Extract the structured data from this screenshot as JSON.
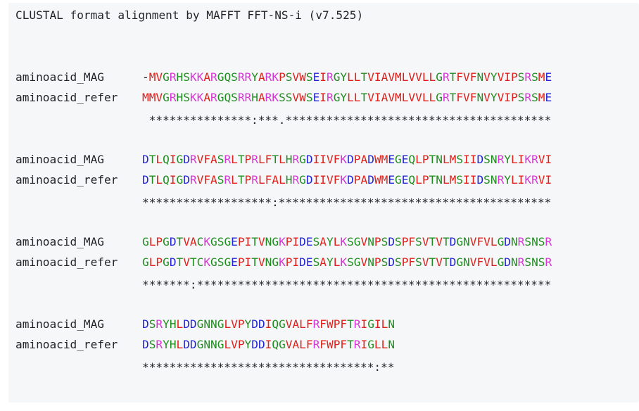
{
  "header": "CLUSTAL format alignment by MAFFT FFT-NS-i (v7.525)",
  "colors": {
    "hydrophobic": "#e0201b",
    "polar": "#218d21",
    "basic": "#d636d6",
    "acidic": "#2323d6",
    "other": "#1f2328"
  },
  "blocks": [
    {
      "rows": [
        {
          "name": "aminoacid_MAG",
          "seq": "-MVGRHSKKARGQSRRYARKPSVWSEIRGYLLTVIAVMLVVLLGRTFVFNVYVIPSRSME"
        },
        {
          "name": "aminoacid_refer",
          "seq": "MMVGRHSKKARGQSRRHARKSSVWSEIRGYLLTVIAVMLVVLLGRTFVFNVYVIPSRSME"
        }
      ],
      "consensus": " ***************:***.***************************************"
    },
    {
      "rows": [
        {
          "name": "aminoacid_MAG",
          "seq": "DTLQIGDRVFASRLTPRLFTLHRGDIIVFKDPADWMEGEQLPTNLMSIIDSNRYLIKRVI"
        },
        {
          "name": "aminoacid_refer",
          "seq": "DTLQIGDRVFASRLTPRLFALHRGDIIVFKDPADWMEGEQLPTNLMSIIDSNRYLIKRVI"
        }
      ],
      "consensus": "*******************:****************************************"
    },
    {
      "rows": [
        {
          "name": "aminoacid_MAG",
          "seq": "GLPGDTVACKGSGEPITVNGKPIDESAYLKSGVNPSDSPFSVTVTDGNVFVLGDNRSNSR"
        },
        {
          "name": "aminoacid_refer",
          "seq": "GLPGDTVTCKGSGEPITVNGKPIDESAYLKSGVNPSDSPFSVTVTDGNVFVLGDNRSNSR"
        }
      ],
      "consensus": "*******:****************************************************"
    },
    {
      "rows": [
        {
          "name": "aminoacid_MAG",
          "seq": "DSRYHLDDGNNGLVPYDDIQGVALFRFWPFTRIGILN"
        },
        {
          "name": "aminoacid_refer",
          "seq": "DSRYHLDDGNNGLVPYDDIQGVALFRFWPFTRIGLLN"
        }
      ],
      "consensus": "**********************************:**"
    }
  ]
}
